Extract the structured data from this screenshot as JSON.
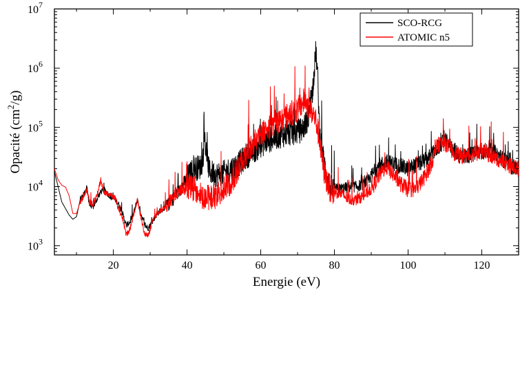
{
  "chart_data": {
    "type": "line",
    "xlabel": "Energie (eV)",
    "ylabel_parts": [
      "Opacité (cm",
      "2",
      "/g)"
    ],
    "xlim": [
      4,
      130
    ],
    "ylim": [
      700,
      10000000
    ],
    "y_scale": "log",
    "x_ticks": [
      20,
      40,
      60,
      80,
      100,
      120
    ],
    "y_ticks": [
      {
        "value": 1000,
        "base": "10",
        "exp": "3"
      },
      {
        "value": 10000,
        "base": "10",
        "exp": "4"
      },
      {
        "value": 100000,
        "base": "10",
        "exp": "5"
      },
      {
        "value": 1000000,
        "base": "10",
        "exp": "6"
      },
      {
        "value": 10000000,
        "base": "10",
        "exp": "7"
      }
    ],
    "legend_position": "top-right",
    "grid": false,
    "series": [
      {
        "name": "SCO-RCG",
        "color": "#000000",
        "x": [
          4,
          6,
          8,
          9,
          10,
          11,
          12,
          12.8,
          13.5,
          14.5,
          15.5,
          16.5,
          17.5,
          18.5,
          19.5,
          20.5,
          21.5,
          22.5,
          23.5,
          24.5,
          25.5,
          26.5,
          27.5,
          28.5,
          29.5,
          30.5,
          31.5,
          32.5,
          33.5,
          35,
          36.5,
          38,
          40,
          42,
          44,
          44.8,
          46,
          48,
          50,
          52,
          54,
          56,
          58,
          60,
          62,
          64,
          66,
          68,
          70,
          71,
          72,
          73,
          74,
          75,
          75.5,
          76,
          77,
          78,
          79,
          80,
          82,
          84,
          86,
          88,
          90,
          92,
          94,
          96,
          98,
          100,
          102,
          104,
          106,
          108,
          110,
          112,
          114,
          116,
          118,
          120,
          122,
          124,
          126,
          128,
          130
        ],
        "y": [
          18000,
          5500,
          3300,
          2800,
          3100,
          6000,
          7500,
          9500,
          5000,
          4500,
          6000,
          8000,
          9000,
          7500,
          6500,
          6000,
          5000,
          3500,
          2200,
          2500,
          3500,
          6000,
          3500,
          2200,
          2000,
          2500,
          3200,
          3800,
          4200,
          5000,
          6500,
          8500,
          14000,
          20000,
          22000,
          60000,
          18000,
          16000,
          17000,
          20000,
          24000,
          32000,
          40000,
          50000,
          60000,
          68000,
          75000,
          80000,
          85000,
          90000,
          110000,
          150000,
          400000,
          2000000,
          600000,
          80000,
          30000,
          14000,
          9500,
          9000,
          9200,
          9800,
          10000,
          11000,
          15000,
          22000,
          26000,
          24000,
          22000,
          20000,
          23000,
          26000,
          32000,
          45000,
          60000,
          45000,
          33000,
          33000,
          36000,
          38000,
          42000,
          36000,
          28000,
          22000,
          20000
        ]
      },
      {
        "name": "ATOMIC n5",
        "color": "#ff0000",
        "x": [
          4,
          5,
          6,
          7,
          8,
          9,
          10,
          11,
          12,
          12.8,
          13.5,
          14.5,
          15.5,
          16.5,
          17.5,
          18.5,
          19.5,
          20.5,
          21.5,
          22.5,
          23.5,
          24.5,
          25.5,
          26.5,
          27.5,
          28.5,
          29.5,
          30.5,
          31.5,
          32.5,
          33.5,
          35,
          36.5,
          38,
          40,
          42,
          44,
          46,
          48,
          50,
          52,
          54,
          56,
          58,
          60,
          62,
          64,
          66,
          68,
          70,
          71,
          72,
          73,
          74,
          75,
          76,
          77,
          78,
          79,
          80,
          82,
          84,
          86,
          88,
          90,
          92,
          94,
          96,
          98,
          100,
          102,
          104,
          106,
          108,
          110,
          112,
          114,
          116,
          118,
          120,
          122,
          124,
          126,
          128,
          130
        ],
        "y": [
          20000,
          13000,
          10500,
          9800,
          7000,
          3500,
          3500,
          5500,
          7000,
          9000,
          5500,
          5000,
          7000,
          12000,
          8000,
          7500,
          7000,
          6500,
          4000,
          3000,
          1500,
          1900,
          3300,
          6000,
          3000,
          1600,
          1500,
          2500,
          3300,
          3800,
          4300,
          5200,
          7000,
          8500,
          10000,
          9000,
          7000,
          6500,
          7000,
          9000,
          12000,
          20000,
          35000,
          55000,
          80000,
          100000,
          120000,
          140000,
          170000,
          200000,
          240000,
          300000,
          220000,
          180000,
          130000,
          60000,
          20000,
          12000,
          8500,
          8000,
          7500,
          6000,
          6000,
          7000,
          9000,
          15000,
          22000,
          16000,
          11000,
          9000,
          9000,
          13000,
          22000,
          50000,
          55000,
          40000,
          33000,
          33000,
          36000,
          40000,
          35000,
          30000,
          26000,
          22000,
          20000
        ]
      }
    ]
  }
}
